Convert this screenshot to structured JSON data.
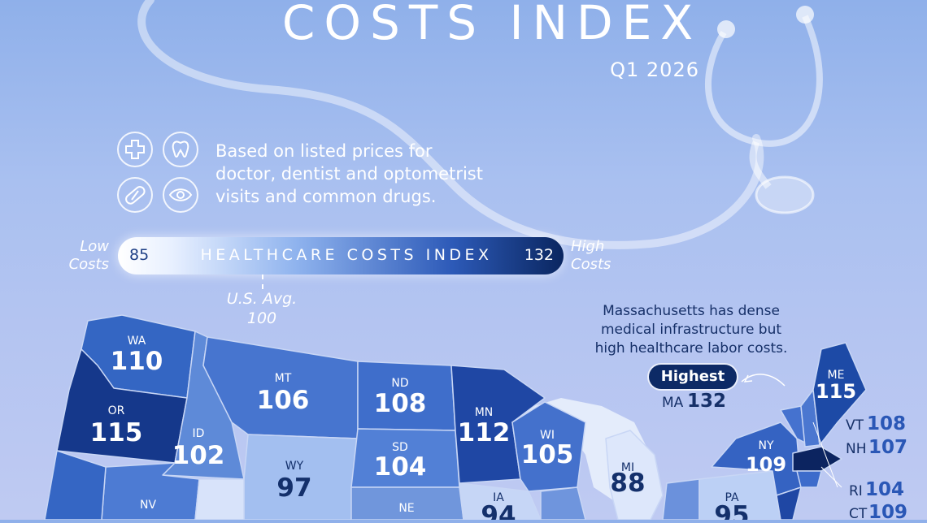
{
  "header": {
    "title": "COSTS INDEX",
    "subtitle": "Q1 2026"
  },
  "description": {
    "line1": "Based on listed prices for",
    "line2": "doctor, dentist and optometrist",
    "line3": "visits and common drugs.",
    "icons": [
      "medical-cross-icon",
      "tooth-icon",
      "pill-icon",
      "eye-icon"
    ]
  },
  "legend": {
    "label": "HEALTHCARE COSTS INDEX",
    "min": "85",
    "max": "132",
    "low_label_1": "Low",
    "low_label_2": "Costs",
    "high_label_1": "High",
    "high_label_2": "Costs",
    "avg_label_1": "U.S. Avg.",
    "avg_label_2": "100",
    "gradient_colors": [
      "#ffffff",
      "#8fb3ee",
      "#2d5ab8",
      "#0a2660"
    ]
  },
  "annotation": {
    "line1": "Massachusetts has dense",
    "line2": "medical infrastructure but",
    "line3": "high healthcare labor costs.",
    "badge": "Highest",
    "state": "MA",
    "value": "132"
  },
  "states": {
    "WA": {
      "code": "WA",
      "value": "110"
    },
    "OR": {
      "code": "OR",
      "value": "115"
    },
    "ID": {
      "code": "ID",
      "value": "102"
    },
    "MT": {
      "code": "MT",
      "value": "106"
    },
    "WY": {
      "code": "WY",
      "value": "97"
    },
    "ND": {
      "code": "ND",
      "value": "108"
    },
    "SD": {
      "code": "SD",
      "value": "104"
    },
    "MN": {
      "code": "MN",
      "value": "112"
    },
    "WI": {
      "code": "WI",
      "value": "105"
    },
    "MI": {
      "code": "MI",
      "value": "88"
    },
    "IA": {
      "code": "IA",
      "value": "94"
    },
    "NY": {
      "code": "NY",
      "value": "109"
    },
    "PA": {
      "code": "PA",
      "value": "95"
    },
    "ME": {
      "code": "ME",
      "value": "115"
    },
    "VT": {
      "code": "VT",
      "value": "108"
    },
    "NH": {
      "code": "NH",
      "value": "107"
    },
    "RI": {
      "code": "RI",
      "value": "104"
    },
    "CT": {
      "code": "CT",
      "value": "109"
    },
    "NV": {
      "code": "NV",
      "value": ""
    },
    "NE": {
      "code": "NE",
      "value": ""
    }
  }
}
